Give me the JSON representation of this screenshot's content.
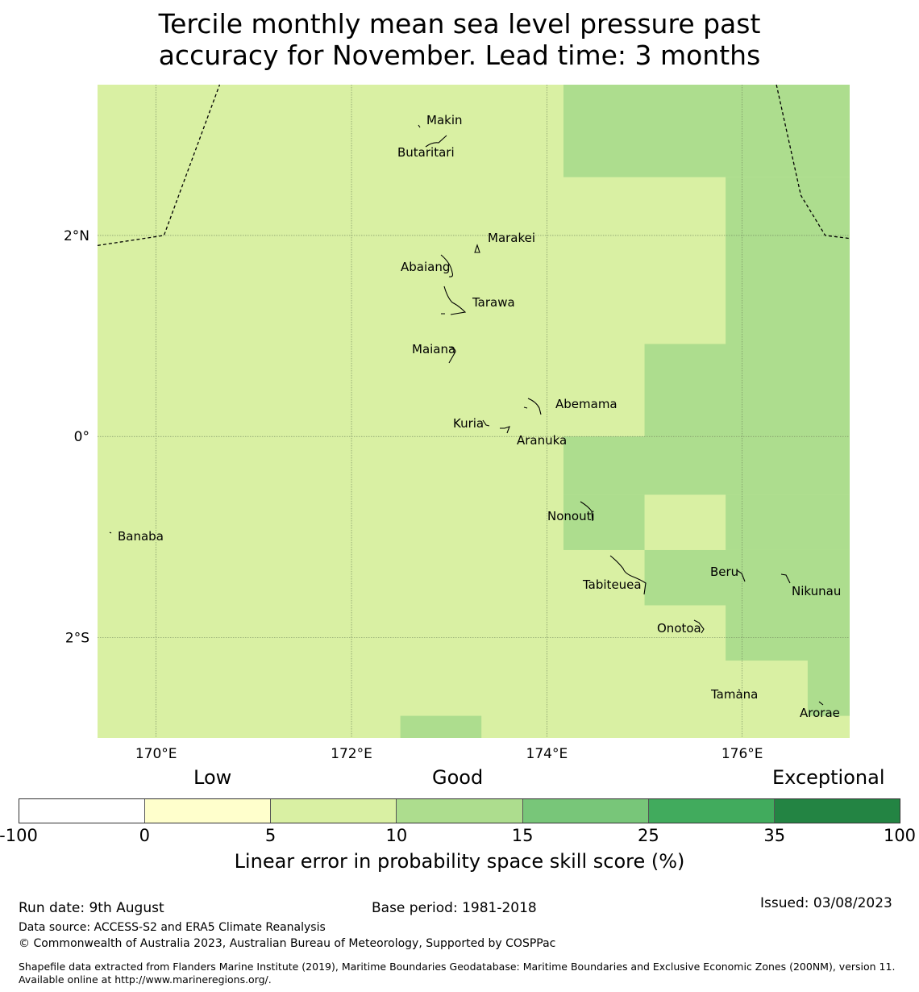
{
  "title": "Tercile monthly mean sea level pressure past accuracy for November. Lead time: 3 months",
  "colors": {
    "c5_10": "#d9f0a3",
    "c10_15": "#addd8e",
    "land": "#000000"
  },
  "map": {
    "lon_range": [
      169.4,
      177.1
    ],
    "lat_range": [
      -3.0,
      3.5
    ],
    "lon_ticks": [
      {
        "value": 170,
        "label": "170°E"
      },
      {
        "value": 172,
        "label": "172°E"
      },
      {
        "value": 174,
        "label": "174°E"
      },
      {
        "value": 176,
        "label": "176°E"
      }
    ],
    "lat_ticks": [
      {
        "value": 2,
        "label": "2°N"
      },
      {
        "value": 0,
        "label": "0°"
      },
      {
        "value": -2,
        "label": "2°S"
      }
    ],
    "skill_cells": [
      {
        "lon": [
          174.17,
          177.1
        ],
        "lat": [
          2.58,
          3.5
        ],
        "level": "10-15"
      },
      {
        "lon": [
          175.83,
          177.1
        ],
        "lat": [
          0.92,
          2.58
        ],
        "level": "10-15"
      },
      {
        "lon": [
          175.0,
          177.1
        ],
        "lat": [
          0.0,
          0.92
        ],
        "level": "10-15"
      },
      {
        "lon": [
          174.17,
          177.1
        ],
        "lat": [
          -0.58,
          0.0
        ],
        "level": "10-15"
      },
      {
        "lon": [
          174.17,
          175.0
        ],
        "lat": [
          -1.13,
          -0.58
        ],
        "level": "10-15"
      },
      {
        "lon": [
          175.83,
          177.1
        ],
        "lat": [
          -1.13,
          -0.58
        ],
        "level": "10-15"
      },
      {
        "lon": [
          175.0,
          177.1
        ],
        "lat": [
          -1.68,
          -1.13
        ],
        "level": "10-15"
      },
      {
        "lon": [
          175.83,
          177.1
        ],
        "lat": [
          -2.23,
          -1.68
        ],
        "level": "10-15"
      },
      {
        "lon": [
          176.67,
          177.1
        ],
        "lat": [
          -2.78,
          -2.23
        ],
        "level": "10-15"
      },
      {
        "lon": [
          172.5,
          173.33
        ],
        "lat": [
          -3.0,
          -2.78
        ],
        "level": "10-15"
      }
    ],
    "eez_boundaries": [
      [
        [
          169.4,
          1.9
        ],
        [
          170.08,
          2.0
        ],
        [
          170.65,
          3.5
        ]
      ],
      [
        [
          176.35,
          3.5
        ],
        [
          176.6,
          2.4
        ],
        [
          176.85,
          2.0
        ],
        [
          177.1,
          1.97
        ]
      ]
    ],
    "islands": [
      {
        "name": "Makin",
        "lon": 172.99,
        "lat": 3.37
      },
      {
        "name": "Butaritari",
        "lon": 172.79,
        "lat": 3.04
      },
      {
        "name": "Marakei",
        "lon": 173.28,
        "lat": 2.09
      },
      {
        "name": "Abaiang",
        "lon": 172.94,
        "lat": 1.85
      },
      {
        "name": "Tarawa",
        "lon": 173.0,
        "lat": 1.48
      },
      {
        "name": "Maiana",
        "lon": 173.02,
        "lat": 0.97
      },
      {
        "name": "Abemama",
        "lon": 173.87,
        "lat": 0.39
      },
      {
        "name": "Kuria",
        "lon": 173.42,
        "lat": 0.22
      },
      {
        "name": "Aranuka",
        "lon": 173.62,
        "lat": 0.16
      },
      {
        "name": "Banaba",
        "lon": 169.54,
        "lat": -0.86
      },
      {
        "name": "Nonouti",
        "lon": 174.35,
        "lat": -0.65
      },
      {
        "name": "Tabiteuea",
        "lon": 174.82,
        "lat": -1.4
      },
      {
        "name": "Beru",
        "lon": 176.0,
        "lat": -1.33
      },
      {
        "name": "Nikunau",
        "lon": 176.45,
        "lat": -1.37
      },
      {
        "name": "Onotoa",
        "lon": 175.55,
        "lat": -1.82
      },
      {
        "name": "Tamana",
        "lon": 175.98,
        "lat": -2.5
      },
      {
        "name": "Arorae",
        "lon": 176.82,
        "lat": -2.65
      }
    ]
  },
  "colorbar": {
    "category_labels": {
      "low": "Low",
      "good": "Good",
      "exceptional": "Exceptional"
    },
    "ticks": [
      "-100",
      "0",
      "5",
      "10",
      "15",
      "25",
      "35",
      "100"
    ],
    "colors": [
      "#ffffff",
      "#ffffcc",
      "#d9f0a3",
      "#addd8e",
      "#78c679",
      "#41ab5d",
      "#238443"
    ],
    "label": "Linear error in probability space skill score (%)"
  },
  "footer": {
    "run_date": "Run date: 9th August",
    "base_period": "Base period: 1981-2018",
    "issued": "Issued: 03/08/2023",
    "data_source": "Data source: ACCESS-S2 and ERA5 Climate Reanalysis",
    "copyright": "© Commonwealth of Australia 2023, Australian Bureau of Meteorology, Supported by COSPPac",
    "shapefile_note": "Shapefile data extracted from Flanders Marine Institute (2019), Maritime Boundaries Geodatabase: Maritime Boundaries and Exclusive Economic Zones (200NM), version 11. Available online at http://www.marineregions.org/."
  }
}
